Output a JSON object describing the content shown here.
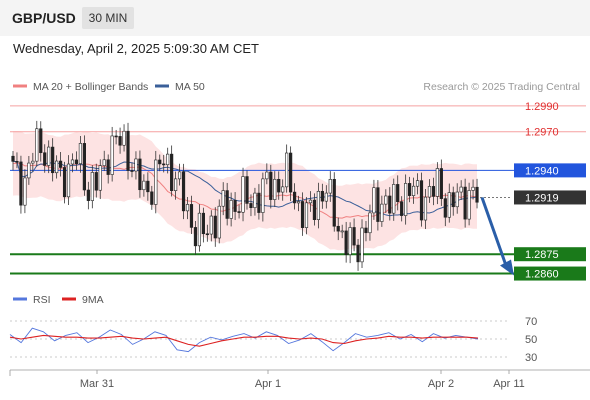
{
  "header": {
    "pair": "GBP/USD",
    "timeframe": "30 MIN",
    "date": "Wednesday, April 2, 2025 5:09:30 AM CET"
  },
  "chart_data": [
    {
      "type": "candlestick",
      "title": "",
      "legend": [
        {
          "name": "MA 20 + Bollinger Bands",
          "color": "#f08080"
        },
        {
          "name": "MA 50",
          "color": "#3a5f99"
        }
      ],
      "legend_position": "top-left",
      "credit": "Research © 2025 Trading Central",
      "ylim": [
        1.2855,
        1.3
      ],
      "grid": false,
      "x_ticks": [
        "Mar 31",
        "Apr 1",
        "Apr 2",
        "Apr 11"
      ],
      "levels": [
        {
          "value": 1.299,
          "label": "1.2990",
          "kind": "resistance",
          "color": "#ee4444"
        },
        {
          "value": 1.297,
          "label": "1.2970",
          "kind": "resistance",
          "color": "#ee4444"
        },
        {
          "value": 1.294,
          "label": "1.2940",
          "kind": "pivot",
          "color": "#2255dd"
        },
        {
          "value": 1.2919,
          "label": "1.2919",
          "kind": "last",
          "color": "#333333"
        },
        {
          "value": 1.2875,
          "label": "1.2875",
          "kind": "support",
          "color": "#1a7a1a"
        },
        {
          "value": 1.286,
          "label": "1.2860",
          "kind": "support",
          "color": "#1a7a1a"
        }
      ],
      "close_path": [
        1.294,
        1.2928,
        1.295,
        1.2962,
        1.2945,
        1.2935,
        1.2942,
        1.295,
        1.2925,
        1.293,
        1.2955,
        1.2963,
        1.2958,
        1.2935,
        1.2922,
        1.2935,
        1.2948,
        1.2938,
        1.2915,
        1.2898,
        1.2888,
        1.29,
        1.291,
        1.2912,
        1.2918,
        1.2915,
        1.2922,
        1.2928,
        1.293,
        1.2935,
        1.2915,
        1.2902,
        1.2918,
        1.2925,
        1.2905,
        1.2885,
        1.2878,
        1.2892,
        1.291,
        1.2918,
        1.2912,
        1.292,
        1.2925,
        1.2918,
        1.2922,
        1.2928,
        1.2912,
        1.2918,
        1.2922,
        1.2919
      ],
      "projection": {
        "from": 1.2919,
        "to": 1.286
      }
    },
    {
      "type": "line",
      "legend": [
        {
          "name": "RSI",
          "color": "#5577dd"
        },
        {
          "name": "9MA",
          "color": "#dd2222"
        }
      ],
      "y_ticks": [
        "70",
        "50",
        "30"
      ],
      "ylim": [
        25,
        75
      ],
      "rsi_path": [
        55,
        46,
        62,
        58,
        48,
        54,
        57,
        46,
        52,
        60,
        55,
        44,
        50,
        58,
        54,
        38,
        36,
        46,
        52,
        49,
        53,
        56,
        51,
        58,
        54,
        45,
        49,
        56,
        47,
        37,
        46,
        56,
        52,
        54,
        57,
        50,
        55,
        47,
        56,
        51,
        54,
        52,
        50
      ],
      "ma_path": [
        52,
        50,
        52,
        54,
        53,
        52,
        52,
        51,
        51,
        52,
        53,
        51,
        50,
        51,
        52,
        48,
        44,
        42,
        45,
        48,
        50,
        52,
        52,
        53,
        53,
        51,
        50,
        51,
        50,
        46,
        45,
        48,
        50,
        51,
        53,
        52,
        52,
        51,
        52,
        52,
        52,
        52,
        51
      ]
    }
  ]
}
